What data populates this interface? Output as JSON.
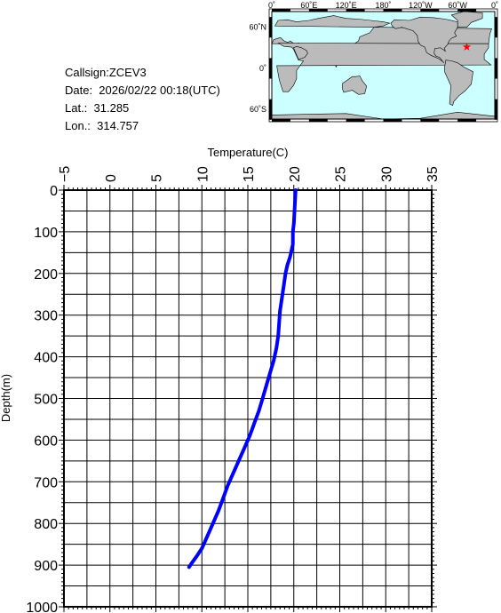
{
  "info": {
    "callsign": "Callsign:ZCEV3",
    "date": "Date:  2026/02/22 00:18(UTC)",
    "lat": "Lat.:  31.285",
    "lon": "Lon.:  314.757"
  },
  "map": {
    "lon_labels": [
      "0˚",
      "60˚E",
      "120˚E",
      "180˚",
      "120˚W",
      "60˚W",
      "0˚"
    ],
    "lat_labels": [
      "60˚N",
      "0˚",
      "60˚S"
    ],
    "marker": {
      "lat": 31.285,
      "lon": 314.757,
      "color": "#ff0000"
    },
    "ocean_color": "#ccffff",
    "land_color": "#bbbbbb"
  },
  "chart_data": {
    "type": "line",
    "xlabel": "Temperature(C)",
    "ylabel": "Depth(m)",
    "xlim": [
      -5,
      35
    ],
    "ylim": [
      0,
      1000
    ],
    "y_inverted": true,
    "x_axis_position": "top",
    "x_ticks": [
      -5,
      0,
      5,
      10,
      15,
      20,
      25,
      30,
      35
    ],
    "y_ticks": [
      0,
      100,
      200,
      300,
      400,
      500,
      600,
      700,
      800,
      900,
      1000
    ],
    "grid": true,
    "series": [
      {
        "color": "#0000ff",
        "points": [
          [
            20.2,
            0
          ],
          [
            20.1,
            40
          ],
          [
            20.0,
            80
          ],
          [
            19.9,
            100
          ],
          [
            19.9,
            130
          ],
          [
            19.6,
            160
          ],
          [
            19.3,
            180
          ],
          [
            19.1,
            200
          ],
          [
            18.9,
            230
          ],
          [
            18.7,
            260
          ],
          [
            18.5,
            290
          ],
          [
            18.4,
            320
          ],
          [
            18.3,
            350
          ],
          [
            18.1,
            380
          ],
          [
            17.8,
            410
          ],
          [
            17.4,
            440
          ],
          [
            17.0,
            470
          ],
          [
            16.6,
            500
          ],
          [
            16.2,
            530
          ],
          [
            15.7,
            560
          ],
          [
            15.2,
            590
          ],
          [
            14.6,
            620
          ],
          [
            14.0,
            650
          ],
          [
            13.4,
            680
          ],
          [
            12.8,
            710
          ],
          [
            12.3,
            740
          ],
          [
            11.8,
            770
          ],
          [
            11.2,
            800
          ],
          [
            10.6,
            830
          ],
          [
            10.0,
            860
          ],
          [
            9.4,
            880
          ],
          [
            8.9,
            895
          ],
          [
            8.6,
            905
          ]
        ]
      }
    ]
  }
}
